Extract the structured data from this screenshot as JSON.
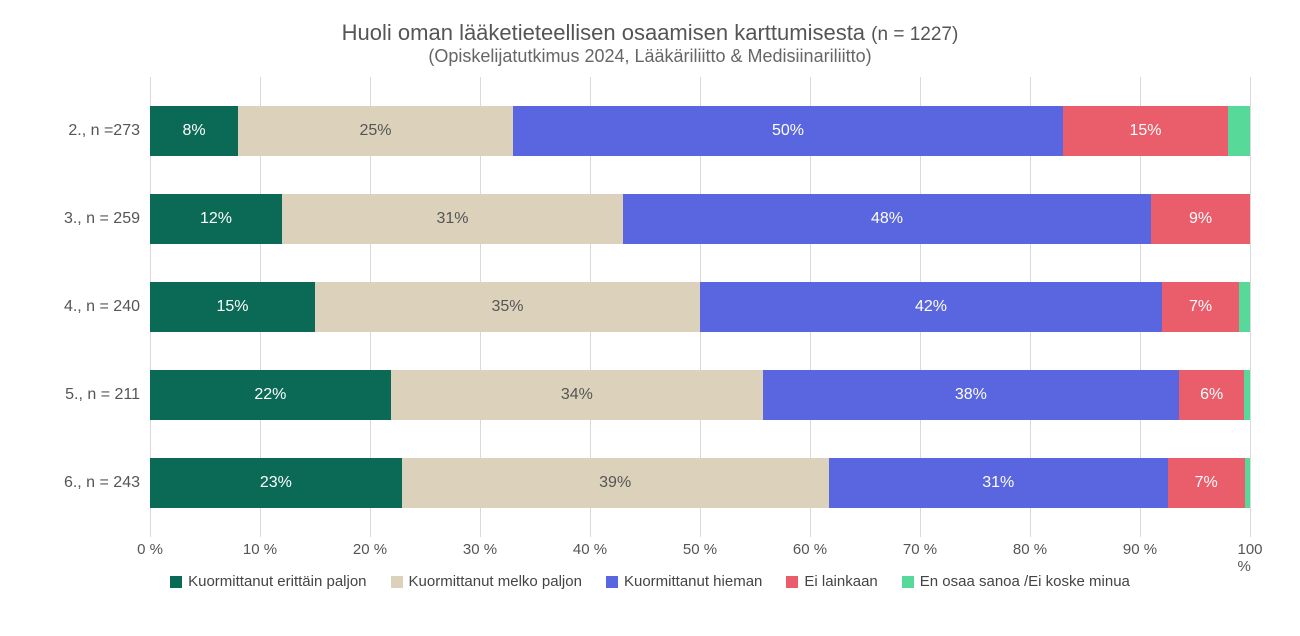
{
  "chart": {
    "type": "stacked-bar-horizontal",
    "title_main": "Huoli oman lääketieteellisen osaamisen karttumisesta ",
    "title_n": "(n = 1227)",
    "subtitle": "(Opiskelijatutkimus 2024, Lääkäriliitto & Medisiinariliitto)",
    "title_fontsize": 22,
    "title_n_fontsize": 19,
    "subtitle_fontsize": 18,
    "title_color": "#555555",
    "background_color": "#ffffff",
    "grid_color": "#d9d9d9",
    "label_fontsize": 16,
    "bar_label_fontsize": 16,
    "value_label_fontsize": 16,
    "x_axis": {
      "min": 0,
      "max": 100,
      "tick_step": 10,
      "tick_format_suffix": " %"
    },
    "series": [
      {
        "key": "s1",
        "label": "Kuormittanut erittäin paljon",
        "color": "#0b6a55",
        "text_color": "#ffffff"
      },
      {
        "key": "s2",
        "label": "Kuormittanut melko paljon",
        "color": "#dcd1bb",
        "text_color": "#555555"
      },
      {
        "key": "s3",
        "label": "Kuormittanut hieman",
        "color": "#5a66e0",
        "text_color": "#ffffff"
      },
      {
        "key": "s4",
        "label": "Ei lainkaan",
        "color": "#ea5d6b",
        "text_color": "#ffffff"
      },
      {
        "key": "s5",
        "label": "En osaa sanoa /Ei koske minua",
        "color": "#57d99a",
        "text_color": "#ffffff"
      }
    ],
    "rows": [
      {
        "label": "2., n =273",
        "values": {
          "s1": 8,
          "s2": 25,
          "s3": 50,
          "s4": 15,
          "s5": 2
        },
        "show": {
          "s1": "8%",
          "s2": "25%",
          "s3": "50%",
          "s4": "15%",
          "s5": ""
        }
      },
      {
        "label": "3., n = 259",
        "values": {
          "s1": 12,
          "s2": 31,
          "s3": 48,
          "s4": 9,
          "s5": 0
        },
        "show": {
          "s1": "12%",
          "s2": "31%",
          "s3": "48%",
          "s4": "9%",
          "s5": ""
        }
      },
      {
        "label": "4., n = 240",
        "values": {
          "s1": 15,
          "s2": 35,
          "s3": 42,
          "s4": 7,
          "s5": 1
        },
        "show": {
          "s1": "15%",
          "s2": "35%",
          "s3": "42%",
          "s4": "7%",
          "s5": ""
        }
      },
      {
        "label": "5., n = 211",
        "values": {
          "s1": 22,
          "s2": 34,
          "s3": 38,
          "s4": 6,
          "s5": 0.5
        },
        "show": {
          "s1": "22%",
          "s2": "34%",
          "s3": "38%",
          "s4": "6%",
          "s5": ""
        }
      },
      {
        "label": "6., n = 243",
        "values": {
          "s1": 23,
          "s2": 39,
          "s3": 31,
          "s4": 7,
          "s5": 0.5
        },
        "show": {
          "s1": "23%",
          "s2": "39%",
          "s3": "31%",
          "s4": "7%",
          "s5": ""
        }
      }
    ]
  }
}
